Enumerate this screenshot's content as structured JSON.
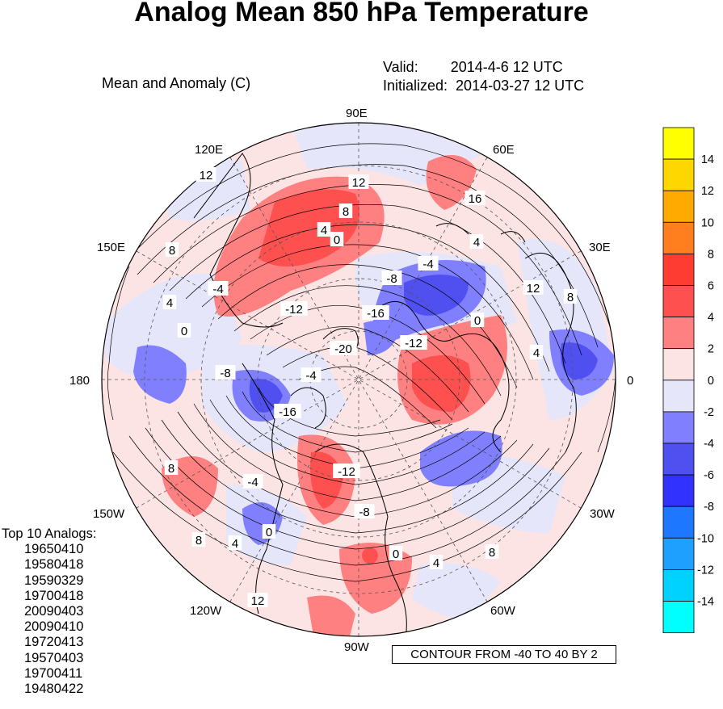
{
  "title": "Analog Mean 850 hPa Temperature",
  "subtitle": "Mean and Anomaly (C)",
  "valid": "Valid:        2014-4-6 12 UTC",
  "initialized": "Initialized:  2014-03-27 12 UTC",
  "contour_note": "CONTOUR FROM -40 TO 40 BY 2",
  "analogs_title": "Top 10 Analogs:",
  "analogs": [
    "19650410",
    "19580418",
    "19590329",
    "19700418",
    "20090403",
    "20090410",
    "19720413",
    "19570403",
    "19700411",
    "19480422"
  ],
  "longitude_labels": {
    "e90": "90E",
    "e60": "60E",
    "e30": "30E",
    "zero": "0",
    "w30": "30W",
    "w60": "60W",
    "w90": "90W",
    "w120": "120W",
    "w150": "150W",
    "d180": "180",
    "e150": "150E",
    "e120": "120E"
  },
  "colorbar": {
    "labels": [
      "14",
      "12",
      "10",
      "8",
      "6",
      "4",
      "2",
      "0",
      "-2",
      "-4",
      "-6",
      "-8",
      "-10",
      "-12",
      "-14"
    ],
    "colors": [
      "#ffff00",
      "#ffd700",
      "#ffaa00",
      "#ff7f1e",
      "#ff3c32",
      "#ff5050",
      "#ff8080",
      "#fde4e4",
      "#e6e6fa",
      "#8080ff",
      "#5050f0",
      "#3232ff",
      "#1e78ff",
      "#1ea0ff",
      "#00d2ff",
      "#00ffff"
    ]
  },
  "contour_labels": [
    {
      "id": "c1",
      "text": "12"
    },
    {
      "id": "c2",
      "text": "12"
    },
    {
      "id": "c3",
      "text": "8"
    },
    {
      "id": "c4",
      "text": "4"
    },
    {
      "id": "c5",
      "text": "0"
    },
    {
      "id": "c6",
      "text": "16"
    },
    {
      "id": "c7",
      "text": "8"
    },
    {
      "id": "c8",
      "text": "4"
    },
    {
      "id": "c9",
      "text": "-4"
    },
    {
      "id": "c10",
      "text": "-8"
    },
    {
      "id": "c11",
      "text": "-12"
    },
    {
      "id": "c12",
      "text": "-16"
    },
    {
      "id": "c13",
      "text": "-20"
    },
    {
      "id": "c14",
      "text": "-12"
    },
    {
      "id": "c15",
      "text": "0"
    },
    {
      "id": "c16",
      "text": "-4"
    },
    {
      "id": "c17",
      "text": "12"
    },
    {
      "id": "c18",
      "text": "8"
    },
    {
      "id": "c19",
      "text": "4"
    },
    {
      "id": "c20",
      "text": "4"
    },
    {
      "id": "c21",
      "text": "0"
    },
    {
      "id": "c22",
      "text": "-8"
    },
    {
      "id": "c23",
      "text": "-16"
    },
    {
      "id": "c24",
      "text": "8"
    },
    {
      "id": "c25",
      "text": "-4"
    },
    {
      "id": "c26",
      "text": "0"
    },
    {
      "id": "c27",
      "text": "4"
    },
    {
      "id": "c28",
      "text": "8"
    },
    {
      "id": "c29",
      "text": "12"
    },
    {
      "id": "c30",
      "text": "-12"
    },
    {
      "id": "c31",
      "text": "-8"
    },
    {
      "id": "c32",
      "text": "0"
    },
    {
      "id": "c33",
      "text": "4"
    },
    {
      "id": "c34",
      "text": "8"
    },
    {
      "id": "c35",
      "text": "-4"
    }
  ]
}
